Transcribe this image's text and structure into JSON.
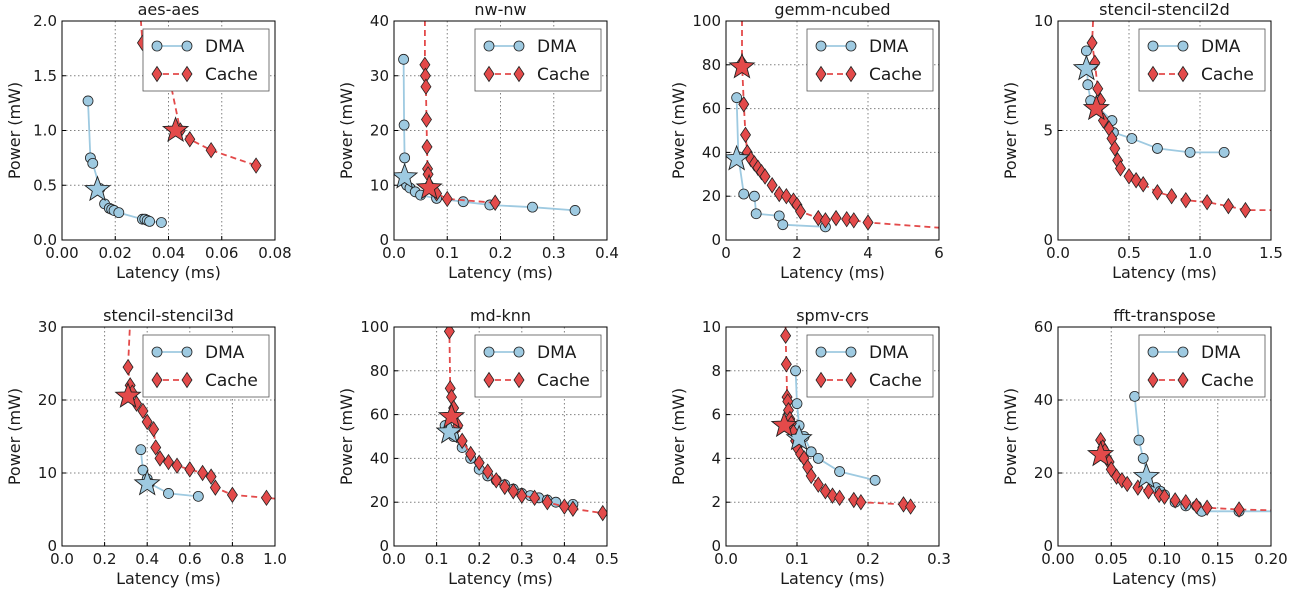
{
  "colors": {
    "dma_fill": "#9ecae1",
    "dma_line": "#9ecae1",
    "cache_fill": "#e34a4a",
    "cache_line": "#e34a4a",
    "marker_edge": "#222222",
    "grid": "#808080"
  },
  "legend": {
    "dma": "DMA",
    "cache": "Cache"
  },
  "chart_data": [
    {
      "type": "line",
      "title": "aes-aes",
      "xlabel": "Latency (ms)",
      "ylabel": "Power (mW)",
      "xlim": [
        0.0,
        0.09
      ],
      "ylim": [
        0.0,
        2.0
      ],
      "xticks": [
        "0.00",
        "0.02",
        "0.04",
        "0.06",
        "0.08"
      ],
      "yticks": [
        "0.0",
        "0.5",
        "1.0",
        "1.5",
        "2.0"
      ],
      "grid": true,
      "legend_position": "top-right",
      "series": [
        {
          "name": "DMA",
          "marker": "circle",
          "x": [
            0.011,
            0.012,
            0.013,
            0.016,
            0.018,
            0.02,
            0.021,
            0.022,
            0.024,
            0.034,
            0.035,
            0.036,
            0.037,
            0.042
          ],
          "y": [
            1.27,
            0.75,
            0.7,
            0.47,
            0.33,
            0.29,
            0.28,
            0.27,
            0.25,
            0.19,
            0.19,
            0.18,
            0.17,
            0.16
          ],
          "star": [
            0.015,
            0.46
          ]
        },
        {
          "name": "Cache",
          "marker": "diamond",
          "x": [
            0.034,
            0.037,
            0.045,
            0.05,
            0.054,
            0.063,
            0.082
          ],
          "y": [
            1.8,
            1.65,
            1.52,
            1.0,
            0.92,
            0.82,
            0.68
          ],
          "line_extends_to": [
            0.033,
            2.1
          ],
          "star": [
            0.048,
            1.0
          ]
        }
      ]
    },
    {
      "type": "line",
      "title": "nw-nw",
      "xlabel": "Latency (ms)",
      "ylabel": "Power (mW)",
      "xlim": [
        0.0,
        0.4
      ],
      "ylim": [
        0,
        40
      ],
      "xticks": [
        "0.0",
        "0.1",
        "0.2",
        "0.3",
        "0.4"
      ],
      "yticks": [
        "0",
        "10",
        "20",
        "30",
        "40"
      ],
      "grid": true,
      "legend_position": "top-right",
      "series": [
        {
          "name": "DMA",
          "marker": "circle",
          "x": [
            0.018,
            0.019,
            0.02,
            0.021,
            0.024,
            0.03,
            0.04,
            0.05,
            0.08,
            0.13,
            0.18,
            0.26,
            0.34
          ],
          "y": [
            33.0,
            21.0,
            15.0,
            10.5,
            10.0,
            9.5,
            8.8,
            8.2,
            7.6,
            7.0,
            6.4,
            6.0,
            5.4
          ],
          "star": [
            0.02,
            11.5
          ]
        },
        {
          "name": "Cache",
          "marker": "diamond",
          "x": [
            0.058,
            0.059,
            0.06,
            0.061,
            0.062,
            0.063,
            0.064,
            0.066,
            0.07,
            0.08,
            0.1,
            0.19
          ],
          "y": [
            32.0,
            30.0,
            28.0,
            22.0,
            17.0,
            13.0,
            12.0,
            10.0,
            9.5,
            8.5,
            7.5,
            6.8
          ],
          "line_extends_to": [
            0.058,
            42
          ],
          "star": [
            0.066,
            9.5
          ]
        }
      ]
    },
    {
      "type": "line",
      "title": "gemm-ncubed",
      "xlabel": "Latency (ms)",
      "ylabel": "Power (mW)",
      "xlim": [
        0,
        6
      ],
      "ylim": [
        0,
        100
      ],
      "xticks": [
        "0",
        "2",
        "4",
        "6"
      ],
      "yticks": [
        "0",
        "20",
        "40",
        "60",
        "80",
        "100"
      ],
      "grid": true,
      "legend_position": "top-right",
      "series": [
        {
          "name": "DMA",
          "marker": "circle",
          "x": [
            0.3,
            0.35,
            0.5,
            0.8,
            0.85,
            1.5,
            1.6,
            2.8
          ],
          "y": [
            65.0,
            38.0,
            21.0,
            20.0,
            12.0,
            11.0,
            7.0,
            6.0
          ],
          "star": [
            0.3,
            37.0
          ]
        },
        {
          "name": "Cache",
          "marker": "diamond",
          "x": [
            0.45,
            0.5,
            0.55,
            0.6,
            0.7,
            0.8,
            0.9,
            1.0,
            1.1,
            1.3,
            1.5,
            1.7,
            1.9,
            2.0,
            2.1,
            2.6,
            2.8,
            3.1,
            3.4,
            3.6,
            4.0
          ],
          "y": [
            81.0,
            62.0,
            48.0,
            40.0,
            37.0,
            35.0,
            33.0,
            31.0,
            29.0,
            25.0,
            21.0,
            20.0,
            18.0,
            16.0,
            13.0,
            10.0,
            9.0,
            10.0,
            9.5,
            9.0,
            8.0
          ],
          "line_extends_to": [
            0.45,
            105,
            6.0,
            5.6
          ],
          "star": [
            0.45,
            79.0
          ]
        }
      ]
    },
    {
      "type": "line",
      "title": "stencil-stencil2d",
      "xlabel": "Latency (ms)",
      "ylabel": "Power (mW)",
      "xlim": [
        0.0,
        1.5
      ],
      "ylim": [
        0,
        11
      ],
      "xticks": [
        "0.0",
        "0.5",
        "1.0",
        "1.5"
      ],
      "yticks": [
        "0",
        "5",
        "10"
      ],
      "grid": true,
      "legend_position": "top-right",
      "series": [
        {
          "name": "DMA",
          "marker": "circle",
          "x": [
            0.2,
            0.21,
            0.23,
            0.38,
            0.39,
            0.52,
            0.7,
            0.93,
            1.17
          ],
          "y": [
            9.5,
            7.8,
            7.0,
            6.0,
            5.4,
            5.1,
            4.6,
            4.4,
            4.4
          ],
          "star": [
            0.2,
            8.6
          ]
        },
        {
          "name": "Cache",
          "marker": "diamond",
          "x": [
            0.24,
            0.26,
            0.28,
            0.3,
            0.32,
            0.36,
            0.38,
            0.4,
            0.42,
            0.44,
            0.5,
            0.55,
            0.6,
            0.7,
            0.8,
            0.9,
            1.05,
            1.2,
            1.32
          ],
          "y": [
            9.9,
            8.9,
            7.6,
            7.0,
            6.0,
            5.6,
            5.1,
            4.6,
            4.0,
            3.6,
            3.2,
            3.0,
            2.8,
            2.4,
            2.2,
            2.0,
            1.9,
            1.7,
            1.5
          ],
          "line_extends_to": [
            0.25,
            11.5,
            1.5,
            1.5
          ],
          "star": [
            0.27,
            6.6
          ]
        }
      ]
    },
    {
      "type": "line",
      "title": "stencil-stencil3d",
      "xlabel": "Latency (ms)",
      "ylabel": "Power (mW)",
      "xlim": [
        0.0,
        1.0
      ],
      "ylim": [
        0,
        30
      ],
      "xticks": [
        "0.0",
        "0.2",
        "0.4",
        "0.6",
        "0.8",
        "1.0"
      ],
      "yticks": [
        "0",
        "10",
        "20",
        "30"
      ],
      "grid": true,
      "legend_position": "top-right",
      "series": [
        {
          "name": "DMA",
          "marker": "circle",
          "x": [
            0.37,
            0.38,
            0.4,
            0.41,
            0.5,
            0.64
          ],
          "y": [
            13.2,
            10.4,
            9.2,
            8.6,
            7.2,
            6.8
          ],
          "star": [
            0.4,
            8.5
          ]
        },
        {
          "name": "Cache",
          "marker": "diamond",
          "x": [
            0.31,
            0.32,
            0.33,
            0.35,
            0.38,
            0.4,
            0.43,
            0.44,
            0.46,
            0.5,
            0.54,
            0.6,
            0.66,
            0.7,
            0.72,
            0.8,
            0.96
          ],
          "y": [
            24.5,
            22.0,
            21.0,
            19.5,
            18.5,
            17.0,
            16.0,
            13.5,
            12.0,
            11.5,
            11.0,
            10.5,
            10.0,
            9.5,
            8.0,
            7.0,
            6.6
          ],
          "line_extends_to": [
            0.32,
            31,
            1.0,
            6.5
          ],
          "star": [
            0.31,
            20.5
          ]
        }
      ]
    },
    {
      "type": "line",
      "title": "md-knn",
      "xlabel": "Latency (ms)",
      "ylabel": "Power (mW)",
      "xlim": [
        0.0,
        0.5
      ],
      "ylim": [
        0,
        100
      ],
      "xticks": [
        "0.0",
        "0.1",
        "0.2",
        "0.3",
        "0.4",
        "0.5"
      ],
      "yticks": [
        "0",
        "20",
        "40",
        "60",
        "80",
        "100"
      ],
      "grid": true,
      "legend_position": "top-right",
      "series": [
        {
          "name": "DMA",
          "marker": "circle",
          "x": [
            0.12,
            0.14,
            0.16,
            0.18,
            0.2,
            0.22,
            0.24,
            0.26,
            0.28,
            0.3,
            0.32,
            0.34,
            0.36,
            0.38,
            0.42
          ],
          "y": [
            55.0,
            50.0,
            45.0,
            40.0,
            35.0,
            32.0,
            30.0,
            28.0,
            26.0,
            24.0,
            23.0,
            22.0,
            21.0,
            20.0,
            19.0
          ],
          "star": [
            0.13,
            52.0
          ]
        },
        {
          "name": "Cache",
          "marker": "diamond",
          "x": [
            0.13,
            0.132,
            0.135,
            0.14,
            0.15,
            0.16,
            0.18,
            0.2,
            0.22,
            0.24,
            0.26,
            0.28,
            0.3,
            0.33,
            0.36,
            0.4,
            0.42,
            0.49
          ],
          "y": [
            98.0,
            72.0,
            68.0,
            63.0,
            55.0,
            48.0,
            42.0,
            38.0,
            34.0,
            30.0,
            27.0,
            25.0,
            23.0,
            22.0,
            20.0,
            18.0,
            17.0,
            15.0
          ],
          "line_extends_to": [
            0.13,
            100,
            0.5,
            14.5
          ],
          "star": [
            0.135,
            59.0
          ]
        }
      ]
    },
    {
      "type": "line",
      "title": "spmv-crs",
      "xlabel": "Latency (ms)",
      "ylabel": "Power (mW)",
      "xlim": [
        0.0,
        0.3
      ],
      "ylim": [
        0,
        10
      ],
      "xticks": [
        "0.0",
        "0.1",
        "0.2",
        "0.3"
      ],
      "yticks": [
        "0",
        "2",
        "4",
        "6",
        "8",
        "10"
      ],
      "grid": true,
      "legend_position": "top-right",
      "series": [
        {
          "name": "DMA",
          "marker": "circle",
          "x": [
            0.098,
            0.1,
            0.103,
            0.11,
            0.12,
            0.13,
            0.16,
            0.21
          ],
          "y": [
            8.0,
            6.5,
            5.5,
            5.0,
            4.3,
            4.0,
            3.4,
            3.0
          ],
          "star": [
            0.103,
            4.9
          ]
        },
        {
          "name": "Cache",
          "marker": "diamond",
          "x": [
            0.084,
            0.085,
            0.086,
            0.087,
            0.088,
            0.09,
            0.092,
            0.095,
            0.098,
            0.1,
            0.105,
            0.11,
            0.115,
            0.12,
            0.13,
            0.14,
            0.15,
            0.16,
            0.18,
            0.19,
            0.25,
            0.26
          ],
          "y": [
            9.6,
            8.3,
            6.8,
            6.6,
            6.2,
            5.8,
            5.6,
            5.2,
            4.8,
            4.5,
            4.2,
            4.0,
            3.6,
            3.2,
            2.8,
            2.5,
            2.3,
            2.2,
            2.1,
            2.0,
            1.9,
            1.8
          ],
          "line_extends_to": [
            0.084,
            10.5,
            0.265,
            1.7
          ],
          "star": [
            0.082,
            5.5
          ]
        }
      ]
    },
    {
      "type": "line",
      "title": "fft-transpose",
      "xlabel": "Latency (ms)",
      "ylabel": "Power (mW)",
      "xlim": [
        0.0,
        0.2
      ],
      "ylim": [
        0,
        60
      ],
      "xticks": [
        "0.00",
        "0.05",
        "0.10",
        "0.15",
        "0.20"
      ],
      "yticks": [
        "0",
        "20",
        "40",
        "60"
      ],
      "grid": true,
      "legend_position": "top-right",
      "series": [
        {
          "name": "DMA",
          "marker": "circle",
          "x": [
            0.072,
            0.076,
            0.08,
            0.084,
            0.092,
            0.096,
            0.1,
            0.11,
            0.12,
            0.13,
            0.135,
            0.17
          ],
          "y": [
            41.0,
            29.0,
            24.0,
            19.0,
            16.0,
            15.0,
            14.0,
            12.0,
            11.0,
            11.0,
            9.5,
            9.5
          ],
          "line_extends_to": [
            0.2,
            9.5
          ],
          "star": [
            0.083,
            19.0
          ]
        },
        {
          "name": "Cache",
          "marker": "diamond",
          "x": [
            0.04,
            0.042,
            0.044,
            0.046,
            0.048,
            0.05,
            0.055,
            0.06,
            0.065,
            0.075,
            0.085,
            0.095,
            0.1,
            0.11,
            0.12,
            0.13,
            0.14,
            0.17
          ],
          "y": [
            29.0,
            27.0,
            26.0,
            24.0,
            23.0,
            21.0,
            19.0,
            18.0,
            17.0,
            16.0,
            15.0,
            14.0,
            13.5,
            12.5,
            12.0,
            11.0,
            10.5,
            10.0
          ],
          "line_extends_to": [
            0.2,
            9.8
          ],
          "star": [
            0.04,
            25.0
          ]
        }
      ]
    }
  ]
}
